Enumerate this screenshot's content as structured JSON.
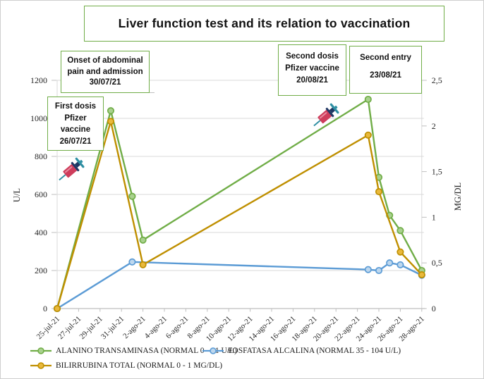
{
  "title": "Liver function test and its relation to vaccination",
  "annotations": [
    {
      "name": "onset-admission",
      "lines": [
        "Onset of abdominal",
        "pain and admission",
        "30/07/21"
      ]
    },
    {
      "name": "first-dose",
      "lines": [
        "First dosis",
        "Pfizer",
        "vaccine",
        "26/07/21"
      ]
    },
    {
      "name": "second-dose",
      "lines": [
        "Second dosis",
        "Pfizer vaccine",
        "20/08/21"
      ]
    },
    {
      "name": "second-entry",
      "lines": [
        "Second entry",
        "23/08/21"
      ]
    }
  ],
  "icons": [
    {
      "name": "syringe-icon",
      "near": "First dosis Pfizer vaccine 26/07/21"
    },
    {
      "name": "syringe-icon",
      "near": "Second dosis Pfizer vaccine 20/08/21"
    }
  ],
  "colors": {
    "accent_green_border": "#70AD47",
    "gridline": "#D9D9D9",
    "axis_line": "#BFBFBF",
    "text": "#262626"
  },
  "chart_data": {
    "type": "line",
    "title": "Liver function test and its relation to vaccination",
    "grid": "horizontal",
    "legend_position": "bottom",
    "x_axis": {
      "tick_labels": [
        "25-jul-21",
        "27-jul-21",
        "29-jul-21",
        "31-jul-21",
        "2-ago-21",
        "4-ago-21",
        "6-ago-21",
        "8-ago-21",
        "10-ago-21",
        "12-ago-21",
        "14-ago-21",
        "16-ago-21",
        "18-ago-21",
        "20-ago-21",
        "22-ago-21",
        "24-ago-21",
        "26-ago-21",
        "28-ago-21"
      ],
      "tick_step_days": 2
    },
    "y_left": {
      "label": "U/L",
      "range": [
        0,
        1200
      ],
      "tick_interval": 200,
      "tick_values": [
        0,
        200,
        400,
        600,
        800,
        1000,
        1200
      ],
      "tick_labels": [
        "0",
        "200",
        "400",
        "600",
        "800",
        "1000",
        "1200"
      ]
    },
    "y_right": {
      "label": "MG/DL",
      "range": [
        0,
        2.5
      ],
      "tick_interval": 0.5,
      "tick_values": [
        0,
        0.5,
        1,
        1.5,
        2,
        2.5
      ],
      "tick_labels": [
        "0",
        "0,5",
        "1",
        "1,5",
        "2",
        "2,5"
      ]
    },
    "series": [
      {
        "name": "ALANINO TRANSAMINASA (NORMAL 0 - 31 U/L)",
        "color": "#70AD47",
        "marker_fill": "#A9D18E",
        "axis": "left",
        "points": [
          {
            "date": "25-jul-21",
            "day": 0,
            "value": 0
          },
          {
            "date": "30-jul-21",
            "day": 5,
            "value": 1040
          },
          {
            "date": "1-ago-21",
            "day": 7,
            "value": 590
          },
          {
            "date": "2-ago-21",
            "day": 8,
            "value": 360
          },
          {
            "date": "23-ago-21",
            "day": 29,
            "value": 1100
          },
          {
            "date": "24-ago-21",
            "day": 30,
            "value": 690
          },
          {
            "date": "25-ago-21",
            "day": 31,
            "value": 490
          },
          {
            "date": "26-ago-21",
            "day": 32,
            "value": 410
          },
          {
            "date": "28-ago-21",
            "day": 34,
            "value": 200
          }
        ]
      },
      {
        "name": "FOSFATASA ALCALINA (NORMAL 35 - 104 U/L)",
        "color": "#5B9BD5",
        "marker_fill": "#BDD7EE",
        "axis": "left",
        "points": [
          {
            "date": "25-jul-21",
            "day": 0,
            "value": 0
          },
          {
            "date": "1-ago-21",
            "day": 7,
            "value": 245
          },
          {
            "date": "23-ago-21",
            "day": 29,
            "value": 205
          },
          {
            "date": "24-ago-21",
            "day": 30,
            "value": 200
          },
          {
            "date": "25-ago-21",
            "day": 31,
            "value": 240
          },
          {
            "date": "26-ago-21",
            "day": 32,
            "value": 230
          },
          {
            "date": "28-ago-21",
            "day": 34,
            "value": 175
          }
        ]
      },
      {
        "name": "BILIRRUBINA TOTAL (NORMAL 0 - 1 MG/DL)",
        "color": "#BF8F00",
        "marker_fill": "#E9B93C",
        "axis": "right",
        "points": [
          {
            "date": "25-jul-21",
            "day": 0,
            "value": 0
          },
          {
            "date": "30-jul-21",
            "day": 5,
            "value": 2.05
          },
          {
            "date": "2-ago-21",
            "day": 8,
            "value": 0.48
          },
          {
            "date": "23-ago-21",
            "day": 29,
            "value": 1.9
          },
          {
            "date": "24-ago-21",
            "day": 30,
            "value": 1.28
          },
          {
            "date": "26-ago-21",
            "day": 32,
            "value": 0.62
          },
          {
            "date": "28-ago-21",
            "day": 34,
            "value": 0.37
          }
        ]
      }
    ]
  }
}
